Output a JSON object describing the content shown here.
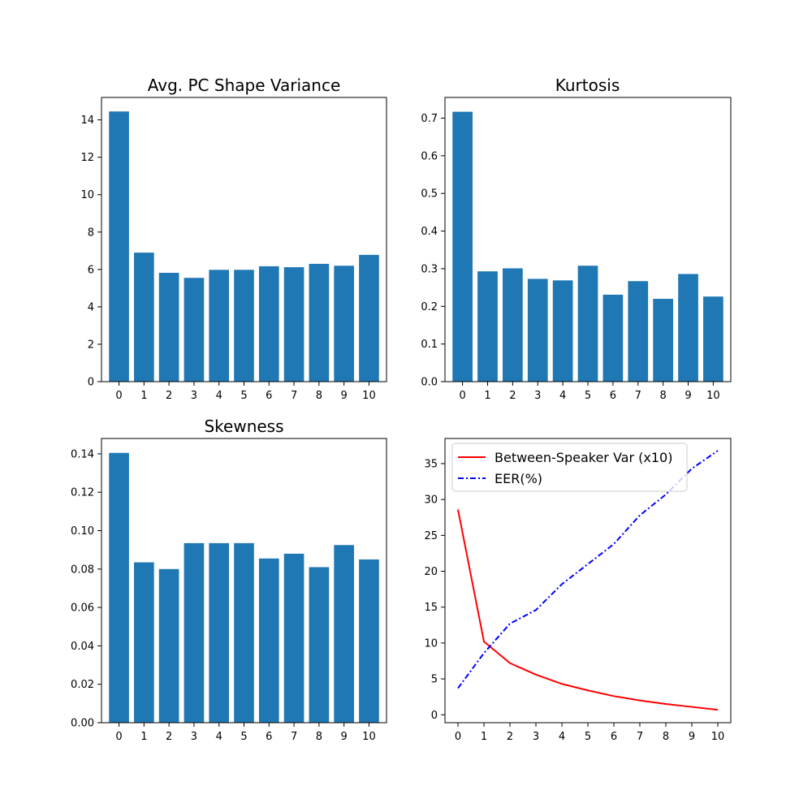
{
  "chart_data": [
    {
      "type": "bar",
      "title": "Avg. PC Shape Variance",
      "xlabel": "",
      "ylabel": "",
      "categories": [
        "0",
        "1",
        "2",
        "3",
        "4",
        "5",
        "6",
        "7",
        "8",
        "9",
        "10"
      ],
      "values": [
        14.45,
        6.9,
        5.82,
        5.55,
        5.98,
        5.98,
        6.17,
        6.12,
        6.3,
        6.2,
        6.78
      ],
      "ylim": [
        0,
        15.2
      ],
      "yticks": [
        "0",
        "2",
        "4",
        "6",
        "8",
        "10",
        "12",
        "14"
      ],
      "ytick_values": [
        0,
        2,
        4,
        6,
        8,
        10,
        12,
        14
      ],
      "grid": false,
      "bar_color": "#1f77b4"
    },
    {
      "type": "bar",
      "title": "Kurtosis",
      "xlabel": "",
      "ylabel": "",
      "categories": [
        "0",
        "1",
        "2",
        "3",
        "4",
        "5",
        "6",
        "7",
        "8",
        "9",
        "10"
      ],
      "values": [
        0.717,
        0.293,
        0.301,
        0.273,
        0.269,
        0.308,
        0.231,
        0.267,
        0.22,
        0.286,
        0.226
      ],
      "ylim": [
        0,
        0.755
      ],
      "yticks": [
        "0.0",
        "0.1",
        "0.2",
        "0.3",
        "0.4",
        "0.5",
        "0.6",
        "0.7"
      ],
      "ytick_values": [
        0,
        0.1,
        0.2,
        0.3,
        0.4,
        0.5,
        0.6,
        0.7
      ],
      "grid": false,
      "bar_color": "#1f77b4"
    },
    {
      "type": "bar",
      "title": "Skewness",
      "xlabel": "",
      "ylabel": "",
      "categories": [
        "0",
        "1",
        "2",
        "3",
        "4",
        "5",
        "6",
        "7",
        "8",
        "9",
        "10"
      ],
      "values": [
        0.1405,
        0.0835,
        0.08,
        0.0935,
        0.0935,
        0.0935,
        0.0855,
        0.088,
        0.081,
        0.0925,
        0.085
      ],
      "ylim": [
        0,
        0.148
      ],
      "yticks": [
        "0.00",
        "0.02",
        "0.04",
        "0.06",
        "0.08",
        "0.10",
        "0.12",
        "0.14"
      ],
      "ytick_values": [
        0,
        0.02,
        0.04,
        0.06,
        0.08,
        0.1,
        0.12,
        0.14
      ],
      "grid": false,
      "bar_color": "#1f77b4"
    },
    {
      "type": "line",
      "title": "",
      "xlabel": "",
      "ylabel": "",
      "x": [
        0,
        1,
        2,
        3,
        4,
        5,
        6,
        7,
        8,
        9,
        10
      ],
      "xticks": [
        "0",
        "1",
        "2",
        "3",
        "4",
        "5",
        "6",
        "7",
        "8",
        "9",
        "10"
      ],
      "xlim": [
        -0.5,
        10.5
      ],
      "ylim": [
        -1.1,
        38.5
      ],
      "yticks": [
        "0",
        "5",
        "10",
        "15",
        "20",
        "25",
        "30",
        "35"
      ],
      "ytick_values": [
        0,
        5,
        10,
        15,
        20,
        25,
        30,
        35
      ],
      "grid": false,
      "legend_position": "top-left",
      "series": [
        {
          "name": "Between-Speaker Var (x10)",
          "values": [
            28.6,
            10.2,
            7.2,
            5.6,
            4.3,
            3.4,
            2.6,
            2.0,
            1.5,
            1.1,
            0.7
          ],
          "color": "#ff0000",
          "style": "solid"
        },
        {
          "name": "EER(%)",
          "values": [
            3.7,
            8.6,
            12.7,
            14.6,
            18.2,
            21.0,
            23.8,
            27.8,
            30.7,
            34.3,
            36.8
          ],
          "color": "#0000ff",
          "style": "dashdot"
        }
      ]
    }
  ]
}
